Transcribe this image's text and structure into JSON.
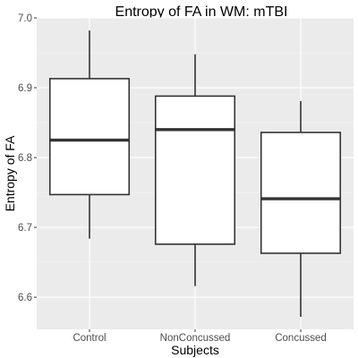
{
  "chart_data": {
    "type": "boxplot",
    "title": "Entropy of FA in WM: mTBI",
    "xlabel": "Subjects",
    "ylabel": "Entropy of FA",
    "categories": [
      "Control",
      "NonConcussed",
      "Concussed"
    ],
    "boxes": [
      {
        "category": "Control",
        "whisker_low": 6.684,
        "q1": 6.747,
        "median": 6.825,
        "q3": 6.913,
        "whisker_high": 6.982
      },
      {
        "category": "NonConcussed",
        "whisker_low": 6.616,
        "q1": 6.676,
        "median": 6.84,
        "q3": 6.888,
        "whisker_high": 6.948
      },
      {
        "category": "Concussed",
        "whisker_low": 6.572,
        "q1": 6.663,
        "median": 6.741,
        "q3": 6.836,
        "whisker_high": 6.881
      }
    ],
    "ylim": [
      6.554,
      7.0
    ],
    "yticks": [
      6.6,
      6.7,
      6.8,
      6.9,
      7.0
    ],
    "ytick_labels": [
      "6.6",
      "6.7",
      "6.8",
      "6.9",
      "7.0"
    ],
    "grid": true,
    "colors": {
      "panel_background": "#ebebeb",
      "grid_major": "#ffffff",
      "grid_minor": "#f5f5f5",
      "box_fill": "#ffffff",
      "box_stroke": "#333333"
    }
  }
}
